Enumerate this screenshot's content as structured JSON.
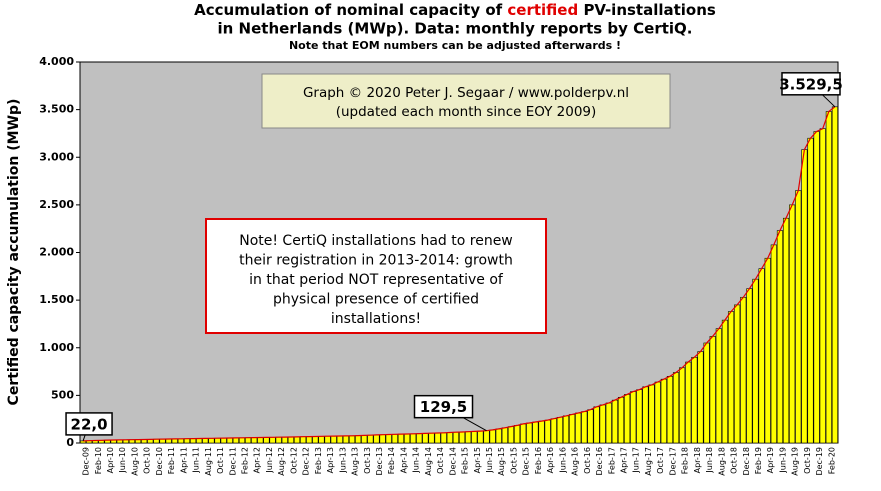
{
  "chart_data": {
    "type": "bar",
    "title": [
      "Accumulation  of nominal capacity of ",
      "certified",
      " PV-installations"
    ],
    "subtitle": "in Netherlands (MWp). Data: monthly  reports by CertiQ.",
    "note": "Note that EOM numbers can be adjusted afterwards  !",
    "y_label": "Certified capacity accumulation (MWp)",
    "credit": [
      "Graph © 2020 Peter J. Segaar / www.polderpv.nl",
      "(updated each month since EOY 2009)"
    ],
    "annotation": [
      "Note! CertiQ installations had to renew",
      "their registration in 2013-2014:  growth",
      "in that period NOT representative of",
      "physical presence of certified",
      "installations!"
    ],
    "color": "#ffff00",
    "highlight_color": "#e00000",
    "trend_color": "#e00000",
    "grid": false,
    "ylim": [
      0,
      4000
    ],
    "yticks": [
      0,
      500,
      {
        "value": 1000,
        "label": "1.000"
      },
      {
        "value": 1500,
        "label": "1.500"
      },
      {
        "value": 2000,
        "label": "2.000"
      },
      {
        "value": 2500,
        "label": "2.500"
      },
      {
        "value": 3000,
        "label": "3.000"
      },
      {
        "value": 3500,
        "label": "3.500"
      },
      {
        "value": 4000,
        "label": "4.000"
      }
    ],
    "categories": [
      "Dec-09",
      null,
      "Feb-10",
      null,
      "Apr-10",
      null,
      "Jun-10",
      null,
      "Aug-10",
      null,
      "Oct-10",
      null,
      "Dec-10",
      null,
      "Feb-11",
      null,
      "Apr-11",
      null,
      "Jun-11",
      null,
      "Aug-11",
      null,
      "Oct-11",
      null,
      "Dec-11",
      null,
      "Feb-12",
      null,
      "Apr-12",
      null,
      "Jun-12",
      null,
      "Aug-12",
      null,
      "Oct-12",
      null,
      "Dec-12",
      null,
      "Feb-13",
      null,
      "Apr-13",
      null,
      "Jun-13",
      null,
      "Aug-13",
      null,
      "Oct-13",
      null,
      "Dec-13",
      null,
      "Feb-14",
      null,
      "Apr-14",
      null,
      "Jun-14",
      null,
      "Aug-14",
      null,
      "Oct-14",
      null,
      "Dec-14",
      null,
      "Feb-15",
      null,
      "Apr-15",
      null,
      "Jun-15",
      null,
      "Aug-15",
      null,
      "Oct-15",
      null,
      "Dec-15",
      null,
      "Feb-16",
      null,
      "Apr-16",
      null,
      "Jun-16",
      null,
      "Aug-16",
      null,
      "Oct-16",
      null,
      "Dec-16",
      null,
      "Feb-17",
      null,
      "Apr-17",
      null,
      "Jun-17",
      null,
      "Aug-17",
      null,
      "Oct-17",
      null,
      "Dec-17",
      null,
      "Feb-18",
      null,
      "Apr-18",
      null,
      "Jun-18",
      null,
      "Aug-18",
      null,
      "Oct-18",
      null,
      "Dec-18",
      null,
      "Feb-19",
      null,
      "Apr-19",
      null,
      "Jun-19",
      null,
      "Aug-19",
      null,
      "Oct-19",
      null,
      "Dec-19",
      null,
      "Feb-20",
      null
    ],
    "values": [
      22,
      24,
      26,
      28,
      30,
      31,
      33,
      34,
      35,
      36,
      37,
      38,
      40,
      41,
      42,
      43,
      44,
      45,
      46,
      47,
      48,
      49,
      50,
      51,
      53,
      54,
      55,
      56,
      57,
      58,
      59,
      60,
      61,
      62,
      63,
      64,
      66,
      67,
      68,
      70,
      71,
      72,
      74,
      75,
      76,
      78,
      80,
      82,
      85,
      87,
      89,
      91,
      93,
      95,
      97,
      99,
      101,
      103,
      105,
      107,
      110,
      113,
      116,
      119,
      122,
      125,
      129.5,
      138,
      148,
      160,
      172,
      185,
      200,
      210,
      220,
      230,
      240,
      255,
      270,
      285,
      300,
      315,
      330,
      350,
      380,
      400,
      420,
      450,
      480,
      510,
      540,
      560,
      590,
      610,
      640,
      670,
      700,
      740,
      790,
      850,
      900,
      960,
      1050,
      1120,
      1200,
      1290,
      1380,
      1450,
      1530,
      1620,
      1720,
      1830,
      1940,
      2080,
      2230,
      2360,
      2500,
      2650,
      3080,
      3200,
      3270,
      3300,
      3480,
      3529.5
    ],
    "value_labels": [
      "22,0",
      null,
      null,
      null,
      null,
      null,
      null,
      null,
      null,
      null,
      null,
      null,
      null,
      null,
      null,
      null,
      null,
      null,
      null,
      null,
      null,
      null,
      null,
      null,
      null,
      null,
      null,
      null,
      null,
      null,
      null,
      null,
      null,
      null,
      null,
      null,
      null,
      null,
      null,
      null,
      null,
      null,
      null,
      null,
      null,
      null,
      null,
      null,
      null,
      null,
      null,
      null,
      null,
      null,
      null,
      null,
      null,
      null,
      null,
      null,
      null,
      null,
      null,
      null,
      null,
      null,
      "129,5",
      null,
      null,
      null,
      null,
      null,
      null,
      null,
      null,
      null,
      null,
      null,
      null,
      null,
      null,
      null,
      null,
      null,
      null,
      null,
      null,
      null,
      null,
      null,
      null,
      null,
      null,
      null,
      null,
      null,
      null,
      null,
      null,
      null,
      null,
      null,
      null,
      null,
      null,
      null,
      null,
      null,
      null,
      null,
      null,
      null,
      null,
      null,
      null,
      null,
      null,
      null,
      null,
      null,
      null,
      null,
      null,
      "3.529,5"
    ]
  }
}
